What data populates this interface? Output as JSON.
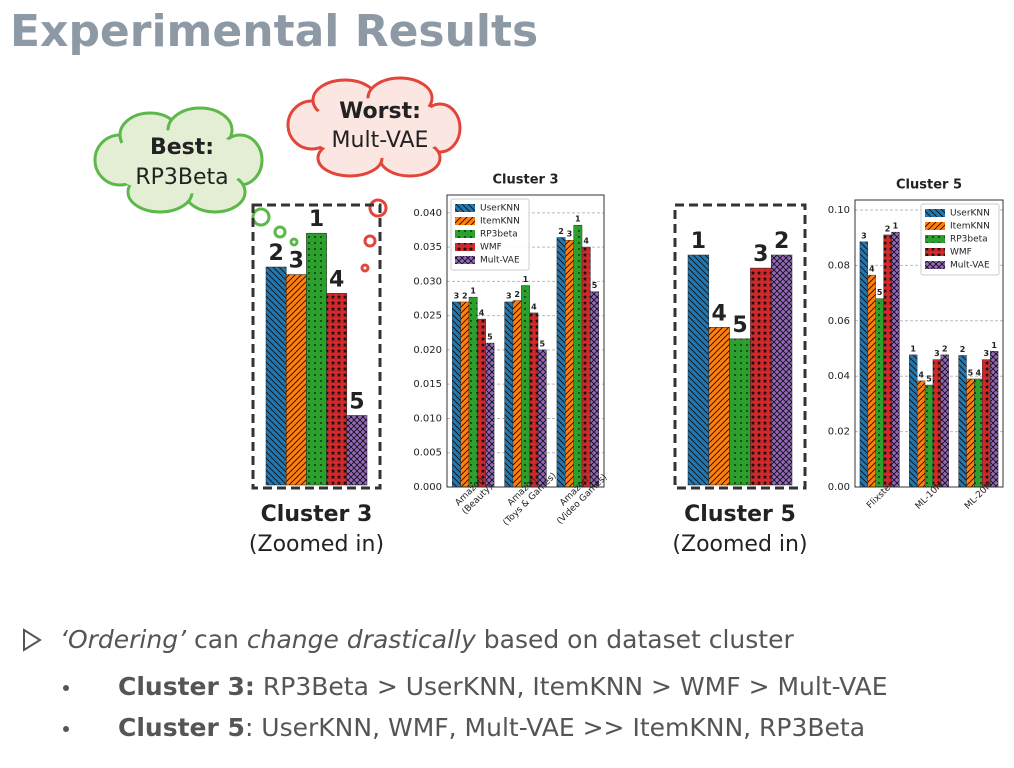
{
  "slide": {
    "title": "Experimental Results",
    "callouts": [
      {
        "lines": [
          "Best:",
          "RP3Beta"
        ]
      },
      {
        "lines": [
          "Worst:",
          "Mult-VAE"
        ]
      }
    ],
    "bullets": [
      {
        "parts": [
          "‘Ordering’",
          " can ",
          "change drastically",
          " based on dataset cluster"
        ]
      }
    ],
    "sub_bullets": [
      {
        "bold": "Cluster 3:",
        "text": " RP3Beta > UserKNN, ItemKNN > WMF > Mult-VAE"
      },
      {
        "bold": "Cluster 5",
        "text": ": UserKNN, WMF, Mult-VAE >> ItemKNN, RP3Beta"
      }
    ]
  },
  "chart_data": [
    {
      "type": "bar",
      "title": "Cluster 3",
      "categories": [
        [
          "Amazon",
          "(Beauty)"
        ],
        [
          "Amazon",
          "(Toys & Games)"
        ],
        [
          "Amazon",
          "(Video Games)"
        ]
      ],
      "series": [
        {
          "name": "UserKNN",
          "color": "#1f77b4",
          "values": [
            0.027,
            0.027,
            0.0364
          ],
          "ranks": [
            3,
            3,
            2
          ]
        },
        {
          "name": "ItemKNN",
          "color": "#ff7f0e",
          "values": [
            0.027,
            0.0272,
            0.036
          ],
          "ranks": [
            2,
            2,
            3
          ]
        },
        {
          "name": "RP3beta",
          "color": "#2ca02c",
          "values": [
            0.0277,
            0.0294,
            0.0382
          ],
          "ranks": [
            1,
            1,
            1
          ]
        },
        {
          "name": "WMF",
          "color": "#d62728",
          "values": [
            0.0245,
            0.0254,
            0.035
          ],
          "ranks": [
            4,
            4,
            4
          ]
        },
        {
          "name": "Mult-VAE",
          "color": "#9467bd",
          "values": [
            0.021,
            0.02,
            0.0285
          ],
          "ranks": [
            5,
            5,
            5
          ]
        }
      ],
      "ylim": [
        0,
        0.0426
      ],
      "yticks": [
        {
          "value": 0,
          "label": "0.000"
        },
        0.005,
        {
          "value": 0.01,
          "label": "0.010"
        },
        0.015,
        {
          "value": 0.02,
          "label": "0.020"
        },
        0.025,
        {
          "value": 0.03,
          "label": "0.030"
        },
        0.035,
        {
          "value": 0.04,
          "label": "0.040"
        }
      ],
      "grid": true,
      "legend": "upper left",
      "zoom": {
        "category": 2,
        "ylim": [
          0.0248,
          0.0397
        ],
        "caption": [
          "Cluster 3",
          "(Zoomed in)"
        ]
      }
    },
    {
      "type": "bar",
      "title": "Cluster 5",
      "categories": [
        [
          "Flixster"
        ],
        [
          "ML-10M"
        ],
        [
          "ML-20M"
        ]
      ],
      "series": [
        {
          "name": "UserKNN",
          "color": "#1f77b4",
          "values": [
            0.0885,
            0.0477,
            0.0475
          ],
          "ranks": [
            3,
            1,
            2
          ]
        },
        {
          "name": "ItemKNN",
          "color": "#ff7f0e",
          "values": [
            0.0765,
            0.0383,
            0.039
          ],
          "ranks": [
            4,
            4,
            5
          ]
        },
        {
          "name": "RP3beta",
          "color": "#2ca02c",
          "values": [
            0.068,
            0.0368,
            0.039
          ],
          "ranks": [
            5,
            5,
            4
          ]
        },
        {
          "name": "WMF",
          "color": "#d62728",
          "values": [
            0.091,
            0.046,
            0.046
          ],
          "ranks": [
            2,
            3,
            3
          ]
        },
        {
          "name": "Mult-VAE",
          "color": "#9467bd",
          "values": [
            0.092,
            0.0477,
            0.049
          ],
          "ranks": [
            1,
            2,
            1
          ]
        }
      ],
      "ylim": [
        0,
        0.1036
      ],
      "yticks": [
        {
          "value": 0,
          "label": "0.00"
        },
        0.02,
        0.04,
        0.06,
        0.08,
        {
          "value": 0.1,
          "label": "0.10"
        }
      ],
      "grid": true,
      "legend": "upper right",
      "zoom": {
        "category": 1,
        "ylim": [
          0.0178,
          0.0542
        ],
        "caption": [
          "Cluster 5",
          "(Zoomed in)"
        ]
      }
    }
  ]
}
